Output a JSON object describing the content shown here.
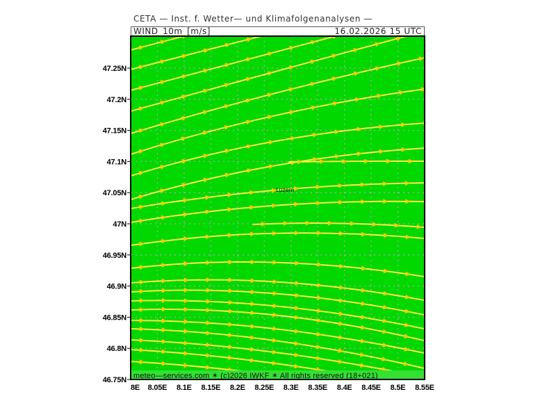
{
  "title": "CETA — Inst. f. Wetter— und Klimafolgenanalysen —",
  "header": {
    "variable": "WIND_10m_[m/s]",
    "datetime": "16.02.2026 15 UTC"
  },
  "map": {
    "type": "streamline wind map",
    "lon_range": [
      8.0,
      8.55
    ],
    "lat_range": [
      46.75,
      47.3
    ],
    "lon_ticks": [
      "8E",
      "8.05E",
      "8.1E",
      "8.15E",
      "8.2E",
      "8.25E",
      "8.3E",
      "8.35E",
      "8.4E",
      "8.45E",
      "8.5E",
      "8.55E"
    ],
    "lat_ticks": [
      "47.25N",
      "47.2N",
      "47.15N",
      "47.1N",
      "47.05N",
      "47N",
      "46.95N",
      "46.9N",
      "46.85N",
      "46.8N",
      "46.75N"
    ],
    "grid": true,
    "places": [
      {
        "name": "Luzern",
        "lon": 8.31,
        "lat": 47.05
      }
    ],
    "colors": {
      "background": "#00d800",
      "streamline": "#ffee44",
      "arrow": "#ffcc00",
      "grid": "#aaaaaa",
      "footer_band": "#33e033"
    }
  },
  "footer": {
    "copyright": "meteo—services.com ✶ (c)2026 IWKF ✶ All rights reserved (18+021)"
  }
}
